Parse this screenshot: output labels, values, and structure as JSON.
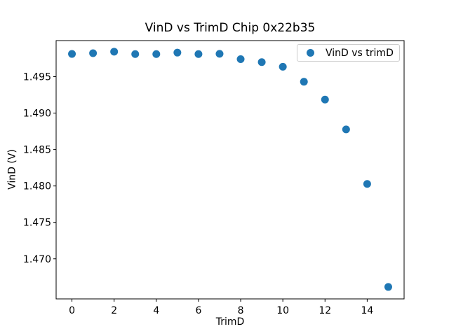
{
  "figure": {
    "background": "#ffffff",
    "text_color": "#000000",
    "spine_color": "#000000",
    "legend_border_color": "#cccccc"
  },
  "chart_data": {
    "type": "scatter",
    "title": "VinD vs TrimD Chip 0x22b35",
    "xlabel": "TrimD",
    "ylabel": "VinD (V)",
    "legend": {
      "label": "VinD vs trimD",
      "position": "upper right"
    },
    "marker_color": "#1f77b4",
    "grid": false,
    "x": [
      0,
      1,
      2,
      3,
      4,
      5,
      6,
      7,
      8,
      9,
      10,
      11,
      12,
      13,
      14,
      15
    ],
    "y": [
      1.49812,
      1.49822,
      1.49843,
      1.4981,
      1.4981,
      1.4983,
      1.4981,
      1.49814,
      1.4974,
      1.497,
      1.49636,
      1.4943,
      1.49186,
      1.48776,
      1.48028,
      1.46614
    ],
    "xlim": [
      -0.75,
      15.75
    ],
    "ylim": [
      1.4645,
      1.49995
    ],
    "x_ticks": [
      0,
      2,
      4,
      6,
      8,
      10,
      12,
      14
    ],
    "x_tick_labels": [
      "0",
      "2",
      "4",
      "6",
      "8",
      "10",
      "12",
      "14"
    ],
    "y_ticks": [
      1.47,
      1.475,
      1.48,
      1.485,
      1.49,
      1.495
    ],
    "y_tick_labels": [
      "1.470",
      "1.475",
      "1.480",
      "1.485",
      "1.490",
      "1.495"
    ]
  }
}
